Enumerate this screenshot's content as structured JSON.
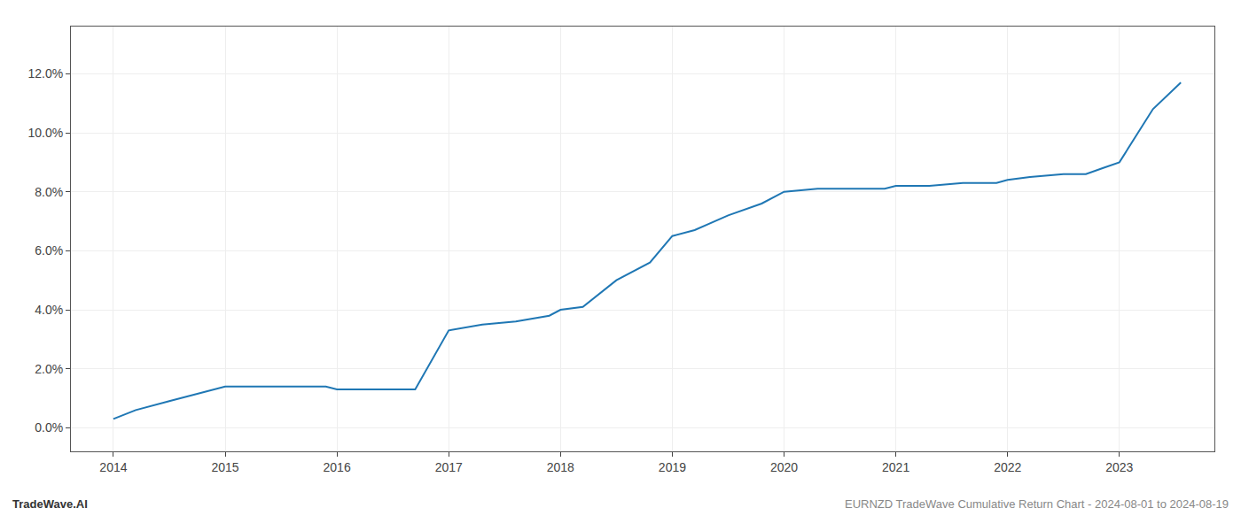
{
  "chart_data": {
    "type": "line",
    "x": [
      2014.0,
      2014.2,
      2014.5,
      2014.8,
      2015.0,
      2015.3,
      2015.6,
      2015.9,
      2016.0,
      2016.2,
      2016.5,
      2016.7,
      2017.0,
      2017.3,
      2017.6,
      2017.9,
      2018.0,
      2018.2,
      2018.5,
      2018.8,
      2019.0,
      2019.2,
      2019.5,
      2019.8,
      2020.0,
      2020.3,
      2020.6,
      2020.9,
      2021.0,
      2021.3,
      2021.6,
      2021.9,
      2022.0,
      2022.2,
      2022.5,
      2022.7,
      2022.85,
      2023.0,
      2023.3,
      2023.55
    ],
    "values": [
      0.003,
      0.006,
      0.009,
      0.012,
      0.014,
      0.014,
      0.014,
      0.014,
      0.013,
      0.013,
      0.013,
      0.013,
      0.033,
      0.035,
      0.036,
      0.038,
      0.04,
      0.041,
      0.05,
      0.056,
      0.065,
      0.067,
      0.072,
      0.076,
      0.08,
      0.081,
      0.081,
      0.081,
      0.082,
      0.082,
      0.083,
      0.083,
      0.084,
      0.085,
      0.086,
      0.086,
      0.088,
      0.09,
      0.108,
      0.117
    ],
    "color": "#1f77b4",
    "xlim": [
      2013.62,
      2023.85
    ],
    "xticks": [
      2014,
      2015,
      2016,
      2017,
      2018,
      2019,
      2020,
      2021,
      2022,
      2023
    ],
    "ylim": [
      -0.008,
      0.136
    ],
    "yticks": [
      {
        "value": 0.0,
        "label": "0.0%"
      },
      {
        "value": 0.02,
        "label": "2.0%"
      },
      {
        "value": 0.04,
        "label": "4.0%"
      },
      {
        "value": 0.06,
        "label": "6.0%"
      },
      {
        "value": 0.08,
        "label": "8.0%"
      },
      {
        "value": 0.1,
        "label": "10.0%"
      },
      {
        "value": 0.12,
        "label": "12.0%"
      }
    ],
    "grid": true,
    "annotations": [
      {
        "text": "TradeWave.AI"
      },
      {
        "text": "EURNZD TradeWave Cumulative Return Chart - 2024-08-01 to 2024-08-19"
      }
    ]
  }
}
